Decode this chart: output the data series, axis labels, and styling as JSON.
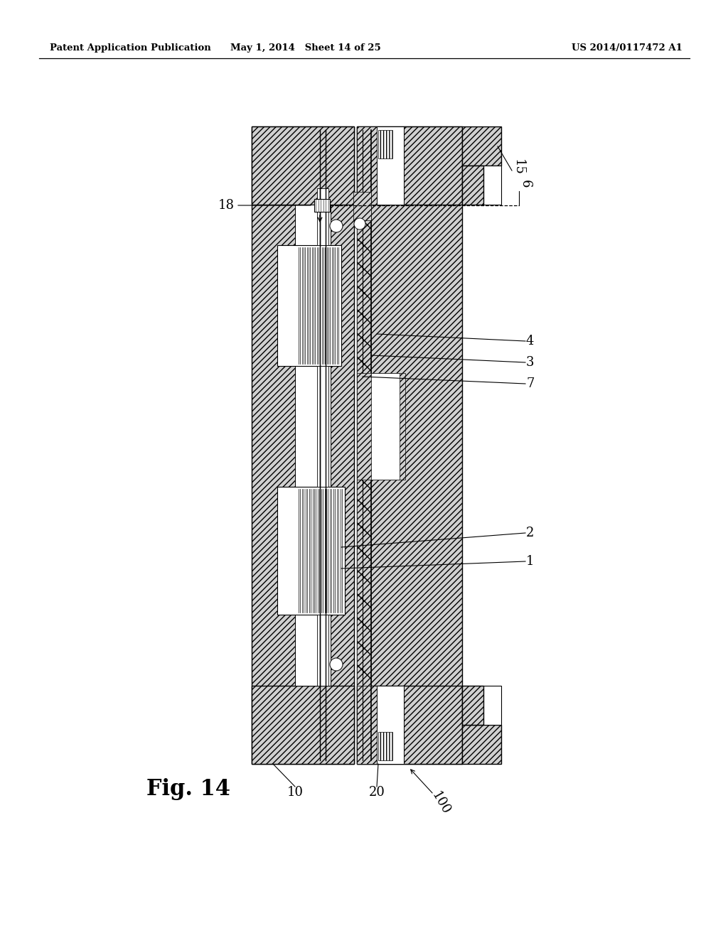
{
  "bg_color": "#ffffff",
  "header_left": "Patent Application Publication",
  "header_mid": "May 1, 2014   Sheet 14 of 25",
  "header_right": "US 2014/0117472 A1",
  "fig_label": "Fig. 14",
  "hatch_fc": "#d0d0d0",
  "line_color": "#000000"
}
